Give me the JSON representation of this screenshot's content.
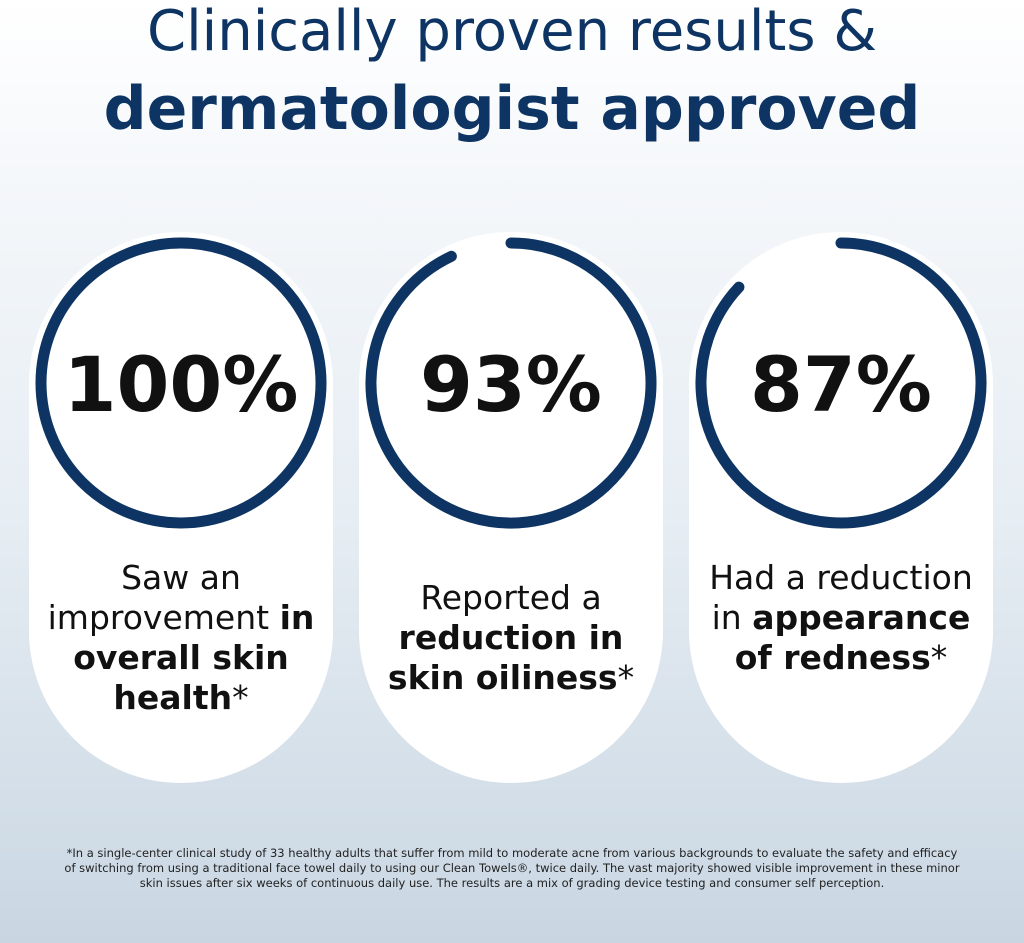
{
  "header": {
    "title_line1": "Clinically proven results &",
    "title_line2": "dermatologist approved"
  },
  "cards": [
    {
      "value": 100,
      "value_label": "100%",
      "lead": "Saw an improvement",
      "emphasis": "in overall skin health",
      "mark": "*"
    },
    {
      "value": 93,
      "value_label": "93%",
      "lead": "Reported a",
      "emphasis": "reduction in skin oiliness",
      "mark": "*"
    },
    {
      "value": 87,
      "value_label": "87%",
      "lead": "Had a reduction in",
      "emphasis": "appearance of redness",
      "mark": "*"
    }
  ],
  "footnote": "*In a single-center clinical study of 33 healthy adults that suffer from mild to moderate acne from various backgrounds to evaluate the safety and efficacy of switching from using a traditional face towel daily to using our Clean Towels®, twice daily. The vast majority showed visible improvement in these minor skin issues after six weeks of continuous daily use. The results are a mix of grading device testing and consumer self perception."
}
